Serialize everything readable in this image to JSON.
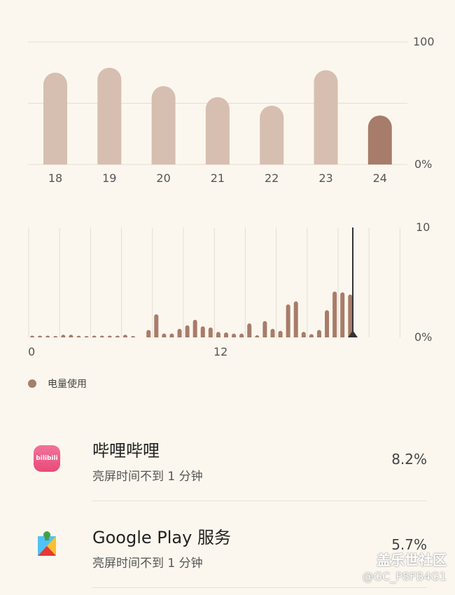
{
  "colors": {
    "bar_light": "#d6bfb0",
    "bar_dark": "#a87c6a",
    "grid": "#e4ddd4",
    "marker": "#333333",
    "background": "#fcf7ee"
  },
  "chart_data": [
    {
      "type": "bar",
      "categories": [
        "18",
        "19",
        "20",
        "21",
        "22",
        "23",
        "24"
      ],
      "values": [
        75,
        79,
        64,
        55,
        48,
        77,
        40
      ],
      "highlighted": "24",
      "ylim": [
        0,
        100
      ],
      "y_tick_labels": [
        "100",
        "0%"
      ],
      "grid": true
    },
    {
      "type": "bar",
      "x_tick_labels": [
        "0",
        "12"
      ],
      "y_tick_labels": [
        "10",
        "0%"
      ],
      "ylim": [
        0,
        10
      ],
      "interval_hours": 0.5,
      "current_time_marker": true,
      "legend": "电量使用",
      "legend_position": "bottom-left",
      "values": [
        0.17,
        0.17,
        0.17,
        0.05,
        0.25,
        0.25,
        0.15,
        0.05,
        0.17,
        0.17,
        0.17,
        0.17,
        0.25,
        0.05,
        0,
        0.68,
        2.1,
        0.36,
        0.36,
        0.78,
        1.1,
        1.6,
        1.0,
        0.9,
        0.5,
        0.45,
        0.35,
        0.35,
        1.27,
        0.2,
        1.48,
        0.78,
        0.6,
        3.0,
        3.28,
        0.5,
        0.3,
        0.68,
        2.48,
        4.17,
        4.1,
        3.9
      ]
    }
  ],
  "legend": {
    "label": "电量使用"
  },
  "apps": [
    {
      "name": "哔哩哔哩",
      "subtitle": "亮屏时间不到 1 分钟",
      "percent": "8.2%",
      "icon": "bilibili-icon",
      "icon_text": "bilibili"
    },
    {
      "name": "Google Play 服务",
      "subtitle": "亮屏时间不到 1 分钟",
      "percent": "5.7%",
      "icon": "google-play-services-icon"
    }
  ],
  "watermark": {
    "line1": "盖乐世社区",
    "line2": "@GC_P8FB4G1"
  }
}
